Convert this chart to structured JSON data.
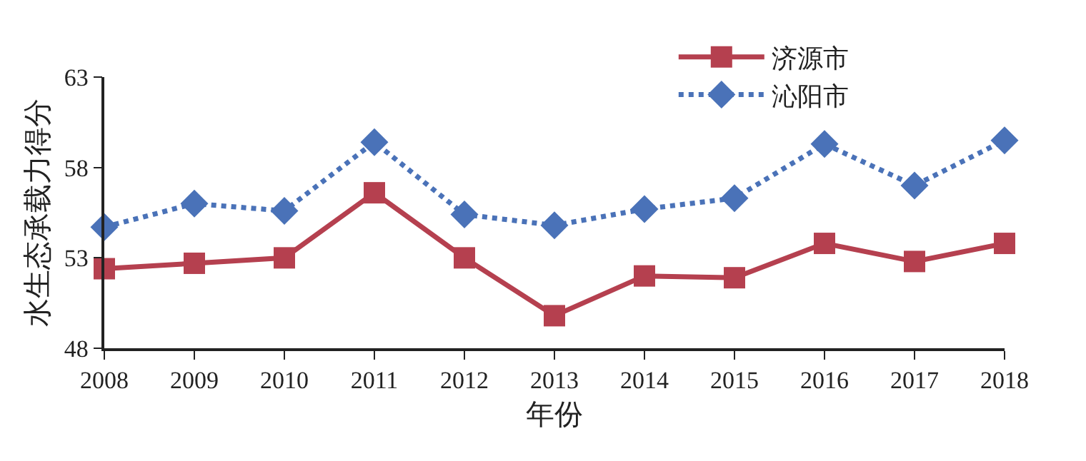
{
  "chart_data": {
    "type": "line",
    "xlabel": "年份",
    "ylabel": "水生态承载力得分",
    "x": [
      2008,
      2009,
      2010,
      2011,
      2012,
      2013,
      2014,
      2015,
      2016,
      2017,
      2018
    ],
    "xlim": [
      2008,
      2018
    ],
    "xticks": [
      2008,
      2009,
      2010,
      2011,
      2012,
      2013,
      2014,
      2015,
      2016,
      2017,
      2018
    ],
    "ylim": [
      48,
      63
    ],
    "yticks": [
      48,
      53,
      58,
      63
    ],
    "grid": false,
    "legend": "top right",
    "series": [
      {
        "name": "济源市",
        "color": "#b5404f",
        "marker": "square",
        "line_style": "solid",
        "values": [
          52.4,
          52.7,
          53.0,
          56.6,
          53.0,
          49.8,
          52.0,
          51.9,
          53.8,
          52.8,
          53.8
        ]
      },
      {
        "name": "沁阳市",
        "color": "#4a72b8",
        "marker": "diamond",
        "line_style": "dotted",
        "values": [
          54.7,
          56.0,
          55.6,
          59.4,
          55.4,
          54.8,
          55.7,
          56.3,
          59.3,
          57.0,
          59.5
        ]
      }
    ]
  }
}
